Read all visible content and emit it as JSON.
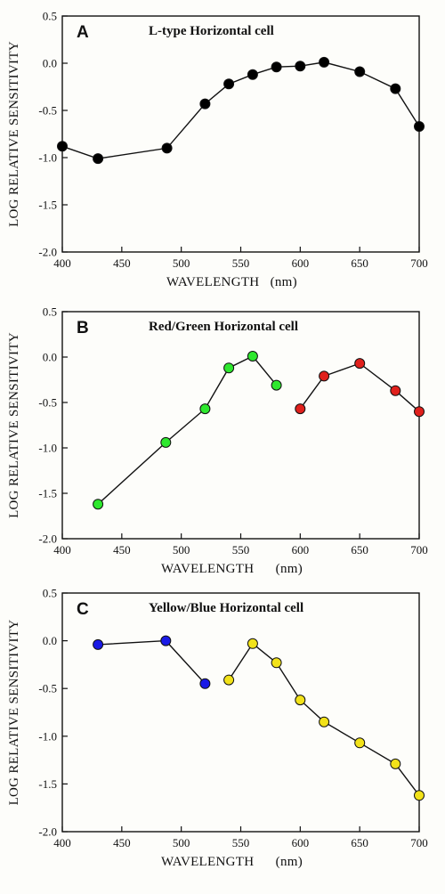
{
  "chart_data": [
    {
      "type": "line",
      "letter": "A",
      "title": "L-type Horizontal cell",
      "xlabel": "WAVELENGTH   (nm)",
      "ylabel": "LOG RELATIVE SENSITIVITY",
      "xlim": [
        400,
        700
      ],
      "ylim": [
        -2.0,
        0.5
      ],
      "xticks": [
        "400",
        "450",
        "500",
        "550",
        "600",
        "650",
        "700"
      ],
      "yticks": [
        "0.5",
        "0.0",
        "-0.5",
        "-1.0",
        "-1.5",
        "-2.0"
      ],
      "series": [
        {
          "color": "#000000",
          "x": [
            400,
            430,
            488,
            520,
            540,
            560,
            580,
            600,
            620,
            650,
            680,
            700
          ],
          "y": [
            -0.88,
            -1.01,
            -0.9,
            -0.43,
            -0.22,
            -0.12,
            -0.04,
            -0.03,
            0.01,
            -0.09,
            -0.27,
            -0.67
          ]
        }
      ]
    },
    {
      "type": "line",
      "letter": "B",
      "title": "Red/Green Horizontal cell",
      "xlabel": "WAVELENGTH      (nm)",
      "ylabel": "LOG RELATIVE SENSITIVITY",
      "xlim": [
        400,
        700
      ],
      "ylim": [
        -2.0,
        0.5
      ],
      "xticks": [
        "400",
        "450",
        "500",
        "550",
        "600",
        "650",
        "700"
      ],
      "yticks": [
        "0.5",
        "0.0",
        "-0.5",
        "-1.0",
        "-1.5",
        "-2.0"
      ],
      "series": [
        {
          "color": "#2ee82e",
          "x": [
            430,
            487,
            520,
            540,
            560,
            580
          ],
          "y": [
            -1.62,
            -0.94,
            -0.57,
            -0.12,
            0.01,
            -0.31
          ]
        },
        {
          "color": "#e0201c",
          "x": [
            600,
            620,
            650,
            680,
            700
          ],
          "y": [
            -0.57,
            -0.21,
            -0.07,
            -0.37,
            -0.6
          ]
        }
      ]
    },
    {
      "type": "line",
      "letter": "C",
      "title": "Yellow/Blue Horizontal cell",
      "xlabel": "WAVELENGTH      (nm)",
      "ylabel": "LOG RELATIVE SENSITIVITY",
      "xlim": [
        400,
        700
      ],
      "ylim": [
        -2.0,
        0.5
      ],
      "xticks": [
        "400",
        "450",
        "500",
        "550",
        "600",
        "650",
        "700"
      ],
      "yticks": [
        "0.5",
        "0.0",
        "-0.5",
        "-1.0",
        "-1.5",
        "-2.0"
      ],
      "series": [
        {
          "color": "#1a1ae6",
          "x": [
            430,
            487,
            520
          ],
          "y": [
            -0.04,
            0.0,
            -0.45
          ]
        },
        {
          "color": "#f2e219",
          "x": [
            540,
            560,
            580,
            600,
            620,
            650,
            680,
            700
          ],
          "y": [
            -0.41,
            -0.03,
            -0.23,
            -0.62,
            -0.85,
            -1.07,
            -1.29,
            -1.62
          ]
        }
      ]
    }
  ]
}
